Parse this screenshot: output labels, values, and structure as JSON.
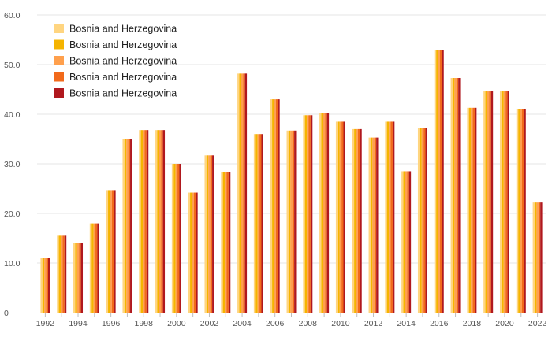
{
  "chart_data": {
    "type": "bar",
    "title": "",
    "xlabel": "",
    "ylabel": "",
    "ylim": [
      0,
      60
    ],
    "yticks": [
      "0",
      "10.0",
      "20.0",
      "30.0",
      "40.0",
      "50.0",
      "60.0"
    ],
    "grid": true,
    "legend_position": "top-left",
    "categories": [
      "1992",
      "1993",
      "1994",
      "1995",
      "1996",
      "1997",
      "1998",
      "1999",
      "2000",
      "2001",
      "2002",
      "2003",
      "2004",
      "2005",
      "2006",
      "2007",
      "2008",
      "2009",
      "2010",
      "2011",
      "2012",
      "2013",
      "2014",
      "2015",
      "2016",
      "2017",
      "2018",
      "2019",
      "2020",
      "2021",
      "2022"
    ],
    "xtick_labels": [
      "1992",
      "",
      "1994",
      "",
      "1996",
      "",
      "1998",
      "",
      "2000",
      "",
      "2002",
      "",
      "2004",
      "",
      "2006",
      "",
      "2008",
      "",
      "2010",
      "",
      "2012",
      "",
      "2014",
      "",
      "2016",
      "",
      "2018",
      "",
      "2020",
      "",
      "2022"
    ],
    "series_colors": [
      "#ffd580",
      "#f5b400",
      "#ffa04d",
      "#f26a1b",
      "#b0181e"
    ],
    "series": [
      {
        "name": "Bosnia and Herzegovina",
        "values": [
          11.0,
          15.5,
          14.0,
          18.0,
          24.7,
          35.0,
          36.8,
          36.8,
          30.0,
          24.2,
          31.7,
          28.3,
          48.2,
          36.0,
          43.0,
          36.7,
          39.8,
          40.3,
          38.5,
          37.0,
          35.3,
          38.5,
          28.5,
          37.2,
          53.0,
          47.3,
          41.3,
          44.6,
          44.6,
          41.1,
          22.2
        ]
      },
      {
        "name": "Bosnia and Herzegovina",
        "values": [
          11.0,
          15.5,
          14.0,
          18.0,
          24.7,
          35.0,
          36.8,
          36.8,
          30.0,
          24.2,
          31.7,
          28.3,
          48.2,
          36.0,
          43.0,
          36.7,
          39.8,
          40.3,
          38.5,
          37.0,
          35.3,
          38.5,
          28.5,
          37.2,
          53.0,
          47.3,
          41.3,
          44.6,
          44.6,
          41.1,
          22.2
        ]
      },
      {
        "name": "Bosnia and Herzegovina",
        "values": [
          11.0,
          15.5,
          14.0,
          18.0,
          24.7,
          35.0,
          36.8,
          36.8,
          30.0,
          24.2,
          31.7,
          28.3,
          48.2,
          36.0,
          43.0,
          36.7,
          39.8,
          40.3,
          38.5,
          37.0,
          35.3,
          38.5,
          28.5,
          37.2,
          53.0,
          47.3,
          41.3,
          44.6,
          44.6,
          41.1,
          22.2
        ]
      },
      {
        "name": "Bosnia and Herzegovina",
        "values": [
          11.0,
          15.5,
          14.0,
          18.0,
          24.7,
          35.0,
          36.8,
          36.8,
          30.0,
          24.2,
          31.7,
          28.3,
          48.2,
          36.0,
          43.0,
          36.7,
          39.8,
          40.3,
          38.5,
          37.0,
          35.3,
          38.5,
          28.5,
          37.2,
          53.0,
          47.3,
          41.3,
          44.6,
          44.6,
          41.1,
          22.2
        ]
      },
      {
        "name": "Bosnia and Herzegovina",
        "values": [
          11.0,
          15.5,
          14.0,
          18.0,
          24.7,
          35.0,
          36.8,
          36.8,
          30.0,
          24.2,
          31.7,
          28.3,
          48.2,
          36.0,
          43.0,
          36.7,
          39.8,
          40.3,
          38.5,
          37.0,
          35.3,
          38.5,
          28.5,
          37.2,
          53.0,
          47.3,
          41.3,
          44.6,
          44.6,
          41.1,
          22.2
        ]
      }
    ]
  }
}
